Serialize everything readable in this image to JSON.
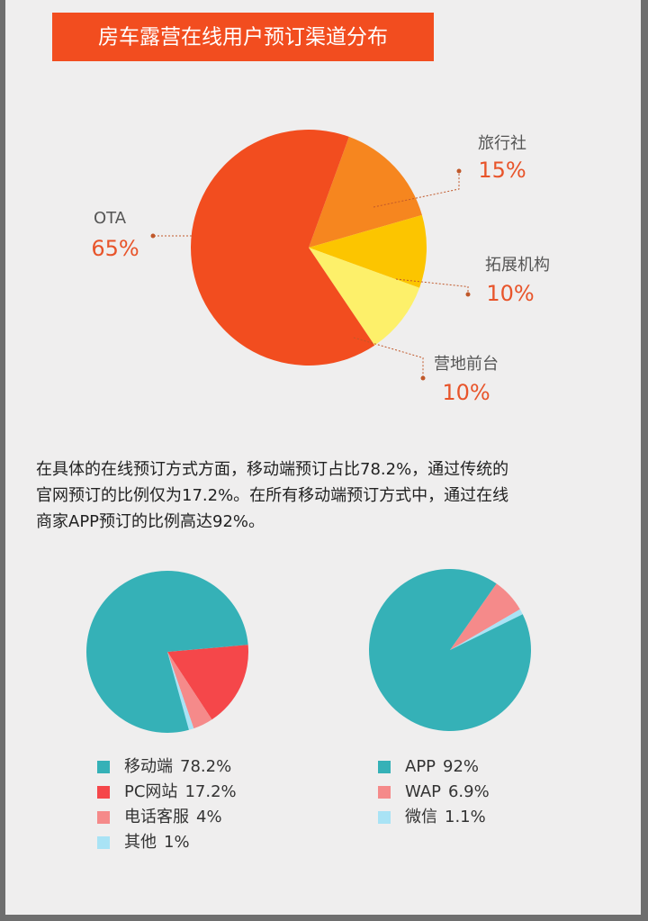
{
  "paragraph": [
    "在具体的在线预订方式方面，移动端预订占比78.2%，通过传统的",
    "官网预订的比例仅为17.2%。在所有移动端预订方式中，通过在线",
    "商家APP预订的比例高达92%。"
  ],
  "chart_data": [
    {
      "type": "pie",
      "title": "房车露营在线用户预订渠道分布",
      "categories": [
        "旅行社",
        "拓展机构",
        "营地前台",
        "OTA"
      ],
      "values": [
        15,
        10,
        10,
        65
      ],
      "value_labels": [
        "15%",
        "10%",
        "10%",
        "65%"
      ],
      "colors": [
        "#f6861f",
        "#fcc500",
        "#fdf06a",
        "#f24d1f"
      ]
    },
    {
      "type": "pie",
      "categories": [
        "PC网站",
        "电话客服",
        "其他",
        "移动端"
      ],
      "values": [
        17.2,
        4,
        1,
        78.2
      ],
      "value_labels": [
        "17.2%",
        "4%",
        "1%",
        "78.2%"
      ],
      "colors": [
        "#f5474a",
        "#f58a8a",
        "#a9e3f5",
        "#35b1b7"
      ]
    },
    {
      "type": "pie",
      "categories": [
        "WAP",
        "微信",
        "APP"
      ],
      "values": [
        6.9,
        1.1,
        92
      ],
      "value_labels": [
        "6.9%",
        "1.1%",
        "92%"
      ],
      "colors": [
        "#f58a8a",
        "#a9e3f5",
        "#35b1b7"
      ]
    }
  ]
}
